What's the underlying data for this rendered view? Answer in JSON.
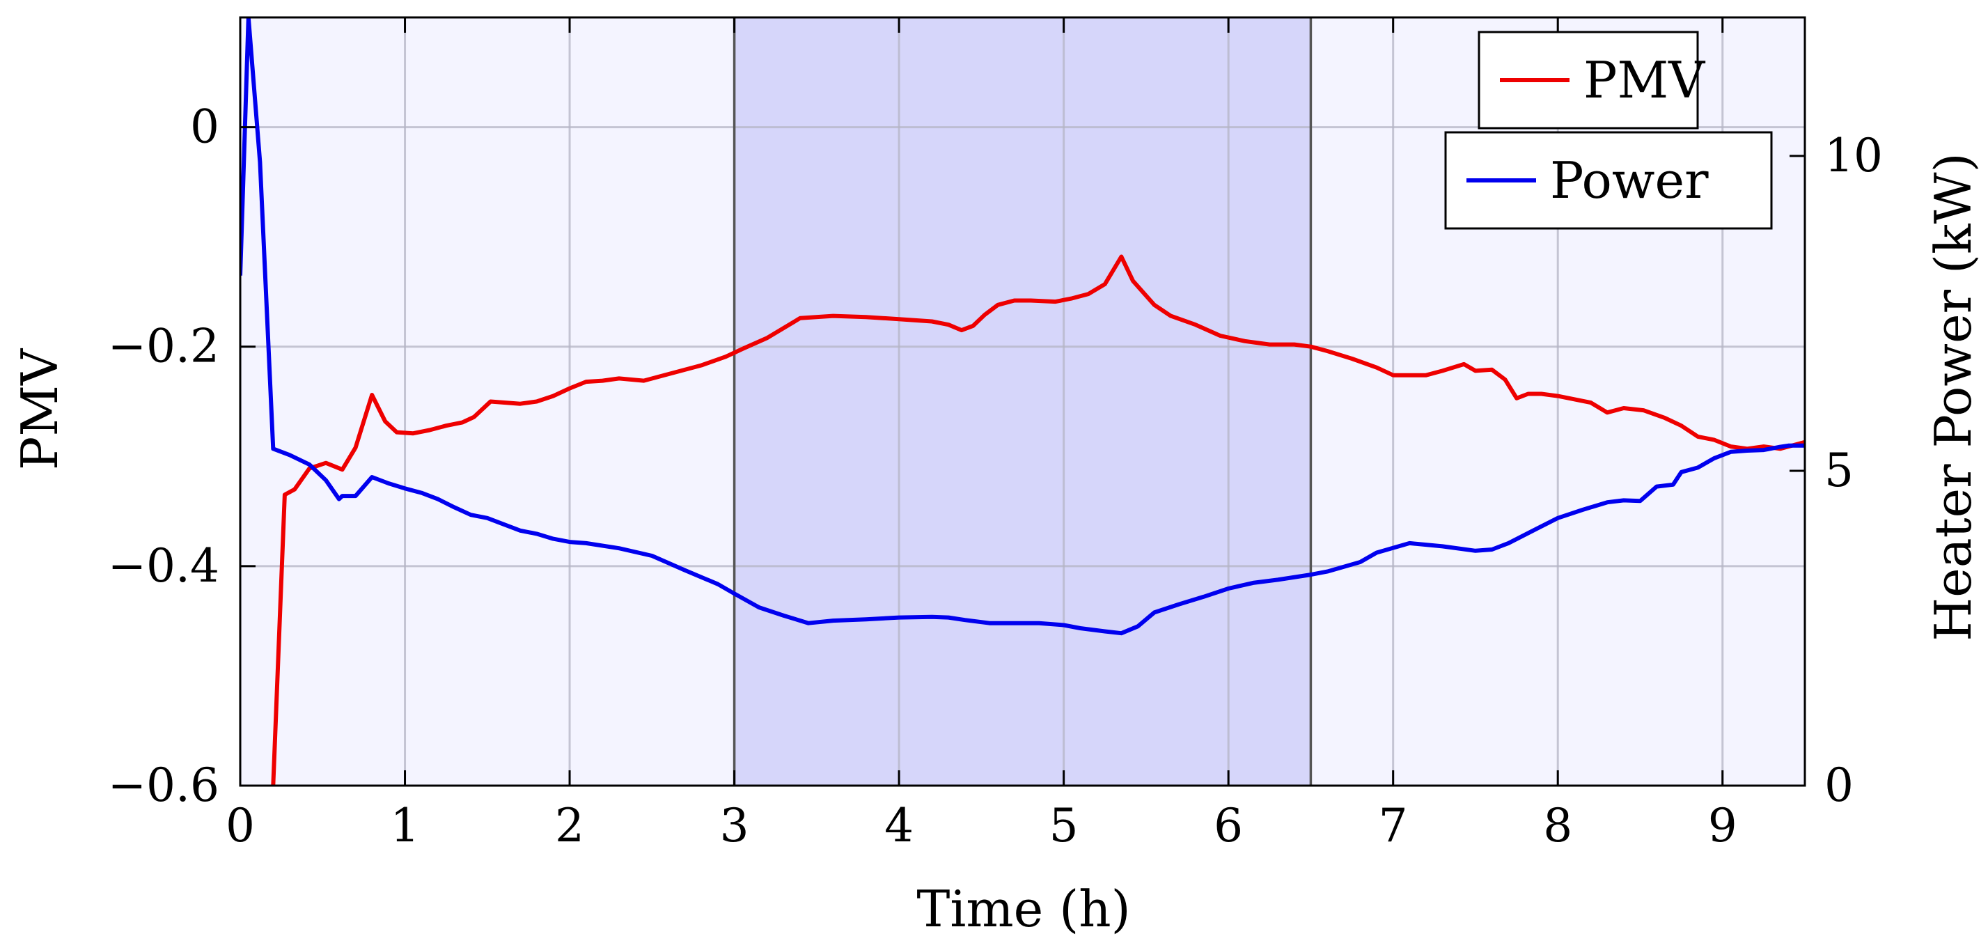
{
  "chart_data": {
    "type": "line",
    "xlabel": "Time (h)",
    "ylabel": "PMV",
    "y2label": "Heater Power (kW)",
    "xlim": [
      0,
      9.5
    ],
    "ylim": [
      -0.6,
      0.1
    ],
    "y2lim": [
      0,
      12.2
    ],
    "x_ticks": [
      0,
      1,
      2,
      3,
      4,
      5,
      6,
      7,
      8,
      9
    ],
    "y_ticks": [
      0,
      -0.2,
      -0.4,
      -0.6
    ],
    "y_tick_labels": [
      "0",
      "−0.2",
      "−0.4",
      "−0.6"
    ],
    "y2_ticks": [
      0,
      5,
      10
    ],
    "grid": true,
    "legend": "top-right",
    "shaded_region": {
      "x_start": 3,
      "x_end": 6.5
    },
    "colors": {
      "pmv": "#ee0000",
      "power": "#0000ee",
      "plot_bg": "#f4f4ff",
      "shade": "#d6d6fa"
    },
    "series": [
      {
        "name": "PMV",
        "axis": "left",
        "x": [
          0.2,
          0.27,
          0.33,
          0.42,
          0.52,
          0.62,
          0.7,
          0.8,
          0.88,
          0.95,
          1.05,
          1.15,
          1.25,
          1.35,
          1.42,
          1.52,
          1.7,
          1.8,
          1.9,
          2.0,
          2.1,
          2.2,
          2.3,
          2.45,
          2.6,
          2.8,
          2.95,
          3.05,
          3.2,
          3.3,
          3.4,
          3.6,
          3.8,
          4.0,
          4.2,
          4.3,
          4.38,
          4.45,
          4.52,
          4.6,
          4.7,
          4.8,
          4.95,
          5.05,
          5.15,
          5.25,
          5.35,
          5.42,
          5.55,
          5.65,
          5.8,
          5.95,
          6.1,
          6.25,
          6.4,
          6.5,
          6.6,
          6.75,
          6.9,
          7.0,
          7.2,
          7.3,
          7.43,
          7.5,
          7.6,
          7.68,
          7.75,
          7.82,
          7.9,
          8.0,
          8.2,
          8.3,
          8.4,
          8.52,
          8.65,
          8.75,
          8.85,
          8.95,
          9.05,
          9.15,
          9.25,
          9.35,
          9.5
        ],
        "values": [
          -0.6,
          -0.335,
          -0.33,
          -0.311,
          -0.306,
          -0.312,
          -0.292,
          -0.244,
          -0.268,
          -0.278,
          -0.279,
          -0.276,
          -0.272,
          -0.269,
          -0.264,
          -0.25,
          -0.252,
          -0.25,
          -0.245,
          -0.238,
          -0.232,
          -0.231,
          -0.229,
          -0.231,
          -0.225,
          -0.217,
          -0.209,
          -0.202,
          -0.192,
          -0.183,
          -0.174,
          -0.172,
          -0.173,
          -0.175,
          -0.177,
          -0.18,
          -0.185,
          -0.181,
          -0.171,
          -0.162,
          -0.158,
          -0.158,
          -0.159,
          -0.156,
          -0.152,
          -0.143,
          -0.118,
          -0.14,
          -0.162,
          -0.172,
          -0.18,
          -0.19,
          -0.195,
          -0.198,
          -0.198,
          -0.2,
          -0.204,
          -0.211,
          -0.219,
          -0.226,
          -0.226,
          -0.222,
          -0.216,
          -0.222,
          -0.221,
          -0.23,
          -0.247,
          -0.243,
          -0.243,
          -0.245,
          -0.251,
          -0.26,
          -0.256,
          -0.258,
          -0.265,
          -0.272,
          -0.282,
          -0.285,
          -0.291,
          -0.293,
          -0.291,
          -0.293,
          -0.287
        ]
      },
      {
        "name": "Power",
        "axis": "right",
        "x": [
          0,
          0.05,
          0.12,
          0.2,
          0.3,
          0.42,
          0.52,
          0.6,
          0.62,
          0.7,
          0.8,
          0.9,
          1.0,
          1.1,
          1.2,
          1.3,
          1.4,
          1.5,
          1.6,
          1.7,
          1.8,
          1.9,
          2.0,
          2.1,
          2.3,
          2.5,
          2.7,
          2.9,
          3.0,
          3.15,
          3.3,
          3.45,
          3.6,
          3.8,
          4.0,
          4.2,
          4.3,
          4.4,
          4.55,
          4.7,
          4.85,
          5.0,
          5.1,
          5.25,
          5.35,
          5.45,
          5.55,
          5.7,
          5.85,
          6.0,
          6.15,
          6.3,
          6.5,
          6.6,
          6.8,
          6.9,
          7.1,
          7.3,
          7.5,
          7.6,
          7.7,
          7.85,
          8.0,
          8.15,
          8.3,
          8.4,
          8.5,
          8.6,
          8.7,
          8.75,
          8.85,
          8.95,
          9.05,
          9.15,
          9.25,
          9.35,
          9.4,
          9.5
        ],
        "values": [
          8.1,
          12.2,
          9.9,
          5.35,
          5.25,
          5.1,
          4.85,
          4.55,
          4.6,
          4.6,
          4.9,
          4.8,
          4.72,
          4.65,
          4.55,
          4.42,
          4.3,
          4.25,
          4.15,
          4.05,
          4.0,
          3.92,
          3.87,
          3.85,
          3.77,
          3.65,
          3.42,
          3.2,
          3.05,
          2.83,
          2.7,
          2.58,
          2.62,
          2.64,
          2.67,
          2.68,
          2.67,
          2.63,
          2.58,
          2.58,
          2.58,
          2.55,
          2.5,
          2.45,
          2.42,
          2.53,
          2.75,
          2.88,
          3.0,
          3.13,
          3.22,
          3.27,
          3.35,
          3.4,
          3.55,
          3.7,
          3.85,
          3.8,
          3.73,
          3.75,
          3.85,
          4.05,
          4.25,
          4.38,
          4.5,
          4.53,
          4.52,
          4.75,
          4.78,
          4.98,
          5.05,
          5.2,
          5.3,
          5.32,
          5.33,
          5.38,
          5.4,
          5.4
        ]
      }
    ]
  }
}
